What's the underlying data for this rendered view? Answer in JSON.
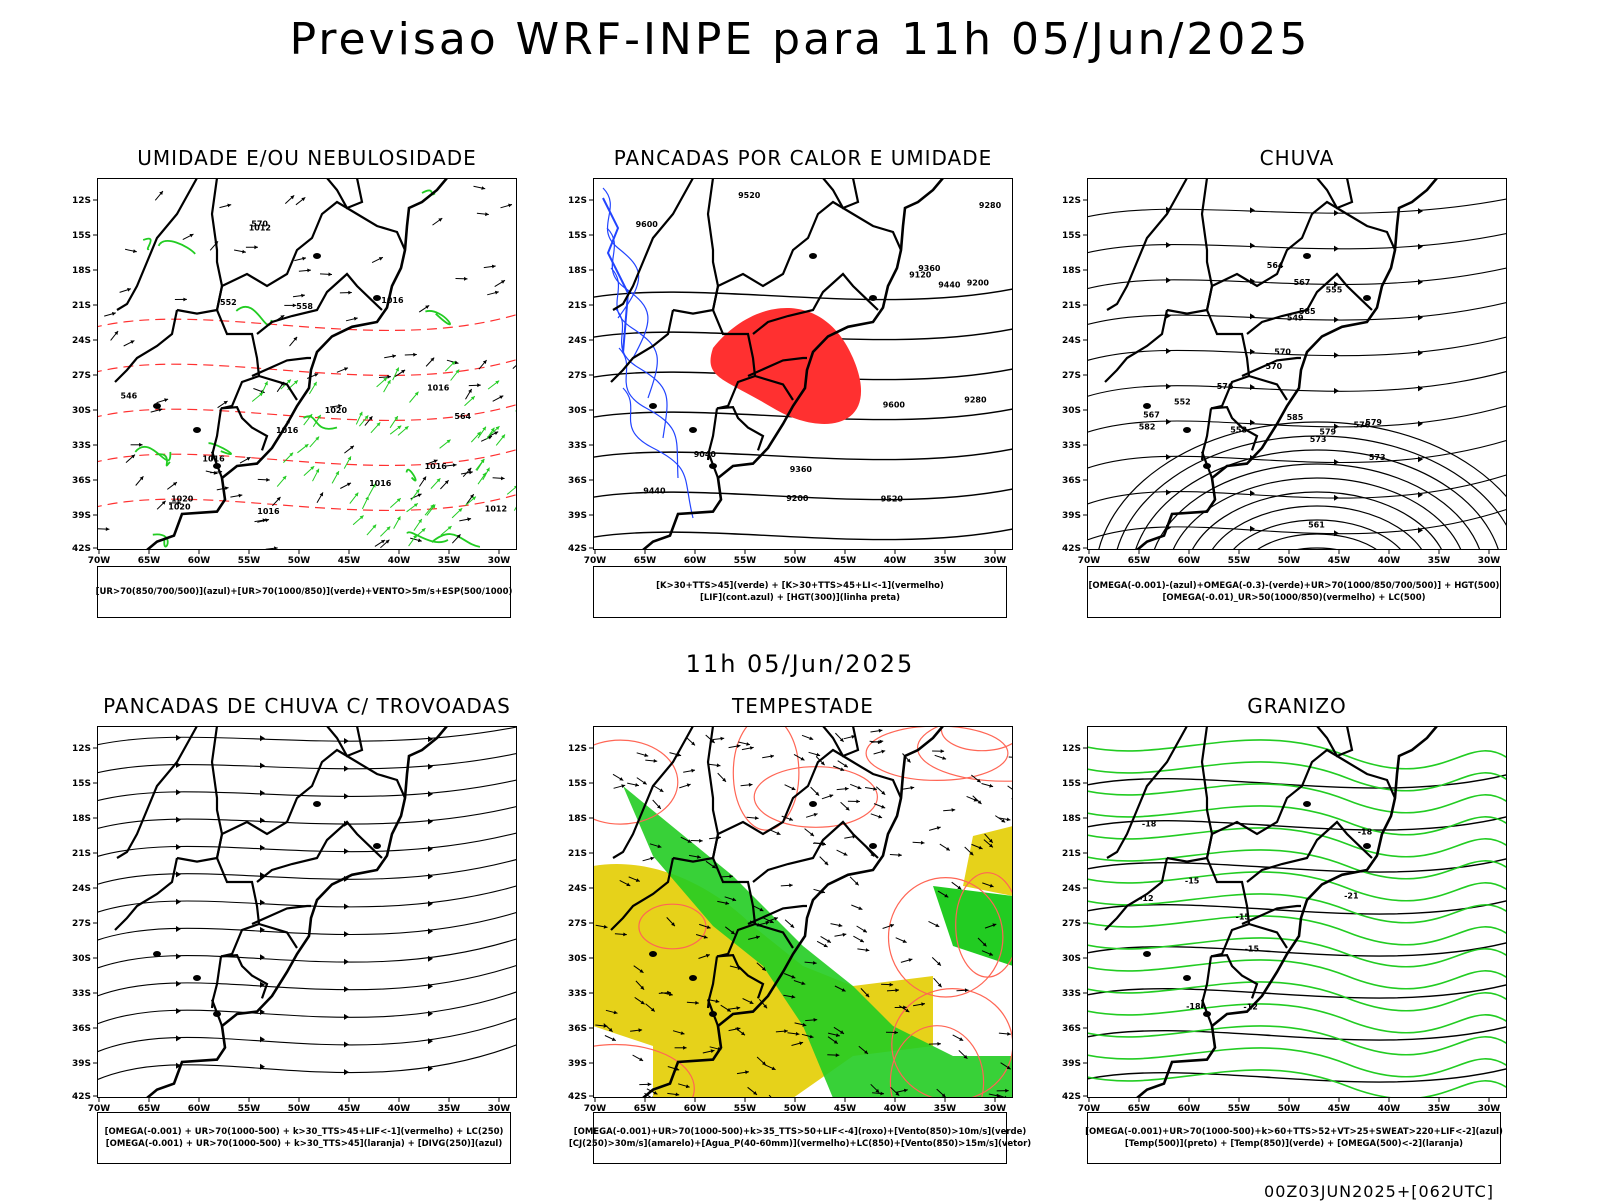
{
  "title": "Previsao WRF-INPE  para 11h 05/Jun/2025",
  "middle_title": "11h 05/Jun/2025",
  "footer": "00Z03JUN2025+[062UTC]",
  "axes": {
    "lat_ticks": [
      "12S",
      "15S",
      "18S",
      "21S",
      "24S",
      "27S",
      "30S",
      "33S",
      "36S",
      "39S",
      "42S"
    ],
    "lon_ticks": [
      "70W",
      "65W",
      "60W",
      "55W",
      "50W",
      "45W",
      "40W",
      "35W",
      "30W"
    ]
  },
  "colors": {
    "green": "#22cc22",
    "red": "#ff3030",
    "blue": "#2244ff",
    "lavender": "#9999ee",
    "darkgreen": "#1f4a3a",
    "yellow": "#e6d21a",
    "orange": "#ee8822",
    "salmon": "#ff6655"
  },
  "panels": [
    {
      "id": "umidade",
      "title": "UMIDADE E/OU NEBULOSIDADE",
      "legend": [
        "[UR>70(850/700/500)](azul)+[UR>70(1000/850)](verde)+VENTO>5m/s+ESP(500/1000)"
      ],
      "labels": [
        "1016",
        "1016",
        "1016",
        "1020",
        "1016",
        "1020",
        "1016",
        "1012",
        "1016",
        "1012",
        "1020",
        "1016",
        "570",
        "564",
        "558",
        "552",
        "546"
      ]
    },
    {
      "id": "pancadas-calor",
      "title": "PANCADAS POR CALOR E UMIDADE",
      "legend": [
        "[K>30+TTS>45](verde) + [K>30+TTS>45+LI<-1](vermelho)",
        "[LIF](cont.azul) + [HGT(300)](linha preta)"
      ],
      "labels": [
        "9600",
        "9520",
        "9440",
        "9360",
        "9280",
        "9200",
        "9120",
        "9040",
        "9200",
        "9280",
        "9360",
        "9440",
        "9520",
        "9600"
      ]
    },
    {
      "id": "chuva",
      "title": "CHUVA",
      "legend": [
        "[OMEGA(-0.001)-(azul)+OMEGA(-0.3)-(verde)+UR>70(1000/850/700/500)] + HGT(500)",
        "[OMEGA(-0.01)_UR>50(1000/850)(vermelho) + LC(500)"
      ],
      "labels": [
        "585",
        "582",
        "579",
        "576",
        "573",
        "570",
        "567",
        "564",
        "561",
        "558",
        "555",
        "552",
        "549",
        "585",
        "579",
        "576",
        "573",
        "570",
        "567"
      ]
    },
    {
      "id": "trovoadas",
      "title": "PANCADAS DE CHUVA C/ TROVOADAS",
      "legend": [
        "[OMEGA(-0.001) + UR>70(1000-500) + k>30_TTS>45+LIF<-1](vermelho) + LC(250)",
        "[OMEGA(-0.001) + UR>70(1000-500) + k>30_TTS>45](laranja) + [DIVG(250)](azul)"
      ],
      "labels": []
    },
    {
      "id": "tempestade",
      "title": "TEMPESTADE",
      "legend": [
        "[OMEGA(-0.001)+UR>70(1000-500)+k>35_TTS>50+LIF<-4](roxo)+[Vento(850)>10m/s](verde)",
        "[CJ(250)>30m/s](amarelo)+[Agua_P(40-60mm)](vermelho)+LC(850)+[Vento(850)>15m/s](vetor)"
      ],
      "labels": []
    },
    {
      "id": "granizo",
      "title": "GRANIZO",
      "legend": [
        "[OMEGA(-0.001)+UR>70(1000-500)+k>60+TTS>52+VT>25+SWEAT>220+LIF<-2](azul)",
        "[Temp(500)](preto) + [Temp(850)](verde) + [OMEGA(500)<-2](laranja)"
      ],
      "labels": [
        "-12",
        "-12",
        "-15",
        "-15",
        "-15",
        "-18",
        "-18",
        "-18",
        "-21"
      ]
    }
  ]
}
